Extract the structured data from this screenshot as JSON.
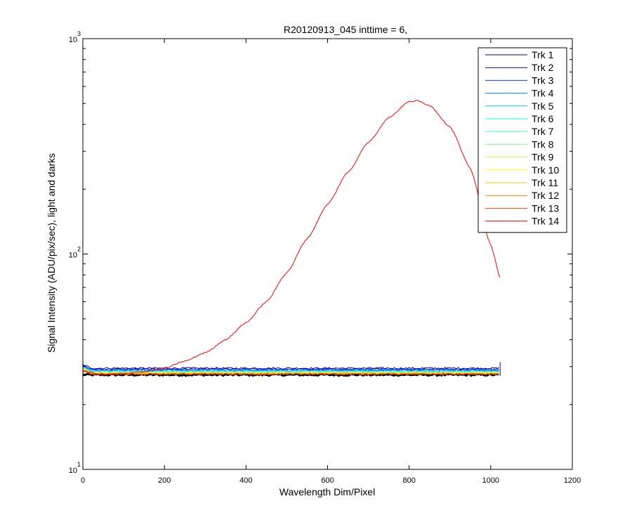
{
  "chart_data": {
    "type": "line",
    "title": "R20120913_045 inttime = 6,",
    "xlabel": "Wavelength Dim/Pixel",
    "ylabel": "Signal Intensity (ADU/pix/sec), light and darks",
    "xlim": [
      0,
      1200
    ],
    "ylim": [
      10,
      1000
    ],
    "yscale": "log",
    "grid": false,
    "legend_position": "top-right",
    "x_ticks": [
      "0",
      "200",
      "400",
      "600",
      "800",
      "1000",
      "1200"
    ],
    "y_ticks": [
      {
        "base": "10",
        "exp": "1",
        "value": 10
      },
      {
        "base": "10",
        "exp": "2",
        "value": 100
      },
      {
        "base": "10",
        "exp": "3",
        "value": 1000
      }
    ],
    "x_range_data": [
      0,
      1023
    ],
    "series": [
      {
        "name": "Trk 1",
        "color": "#00008f",
        "level": 29.5
      },
      {
        "name": "Trk 2",
        "color": "#0000cf",
        "level": 29.2
      },
      {
        "name": "Trk 3",
        "color": "#0040ff",
        "level": 29.0
      },
      {
        "name": "Trk 4",
        "color": "#0080ff",
        "level": 28.8
      },
      {
        "name": "Trk 5",
        "color": "#00bfff",
        "level": 28.6
      },
      {
        "name": "Trk 6",
        "color": "#00ffff",
        "level": 28.4
      },
      {
        "name": "Trk 7",
        "color": "#40ffbf",
        "level": 28.3
      },
      {
        "name": "Trk 8",
        "color": "#80ff80",
        "level": 28.2
      },
      {
        "name": "Trk 9",
        "color": "#bfff40",
        "level": 28.1
      },
      {
        "name": "Trk 10",
        "color": "#ffff00",
        "level": 28.0
      },
      {
        "name": "Trk 11",
        "color": "#ffbf00",
        "level": 27.9
      },
      {
        "name": "Trk 12",
        "color": "#ff8000",
        "level": 27.8
      },
      {
        "name": "Trk 13",
        "color": "#ff4000",
        "level": 27.7
      },
      {
        "name": "Trk 14",
        "color": "#ff0000",
        "level": 27.6,
        "peak_points": [
          [
            0,
            28.5
          ],
          [
            50,
            27.6
          ],
          [
            100,
            27.8
          ],
          [
            150,
            28.4
          ],
          [
            200,
            29.5
          ],
          [
            250,
            31.8
          ],
          [
            300,
            34.8
          ],
          [
            350,
            40
          ],
          [
            400,
            48
          ],
          [
            450,
            60
          ],
          [
            500,
            82
          ],
          [
            550,
            118
          ],
          [
            600,
            170
          ],
          [
            650,
            240
          ],
          [
            700,
            330
          ],
          [
            750,
            430
          ],
          [
            800,
            510
          ],
          [
            820,
            515
          ],
          [
            850,
            490
          ],
          [
            900,
            390
          ],
          [
            950,
            250
          ],
          [
            1000,
            110
          ],
          [
            1023,
            78
          ]
        ]
      }
    ],
    "dark_points": [
      [
        0,
        27.5
      ],
      [
        1023,
        27.5
      ]
    ],
    "colors": {
      "background": "#ffffff",
      "axis": "#000000"
    }
  }
}
